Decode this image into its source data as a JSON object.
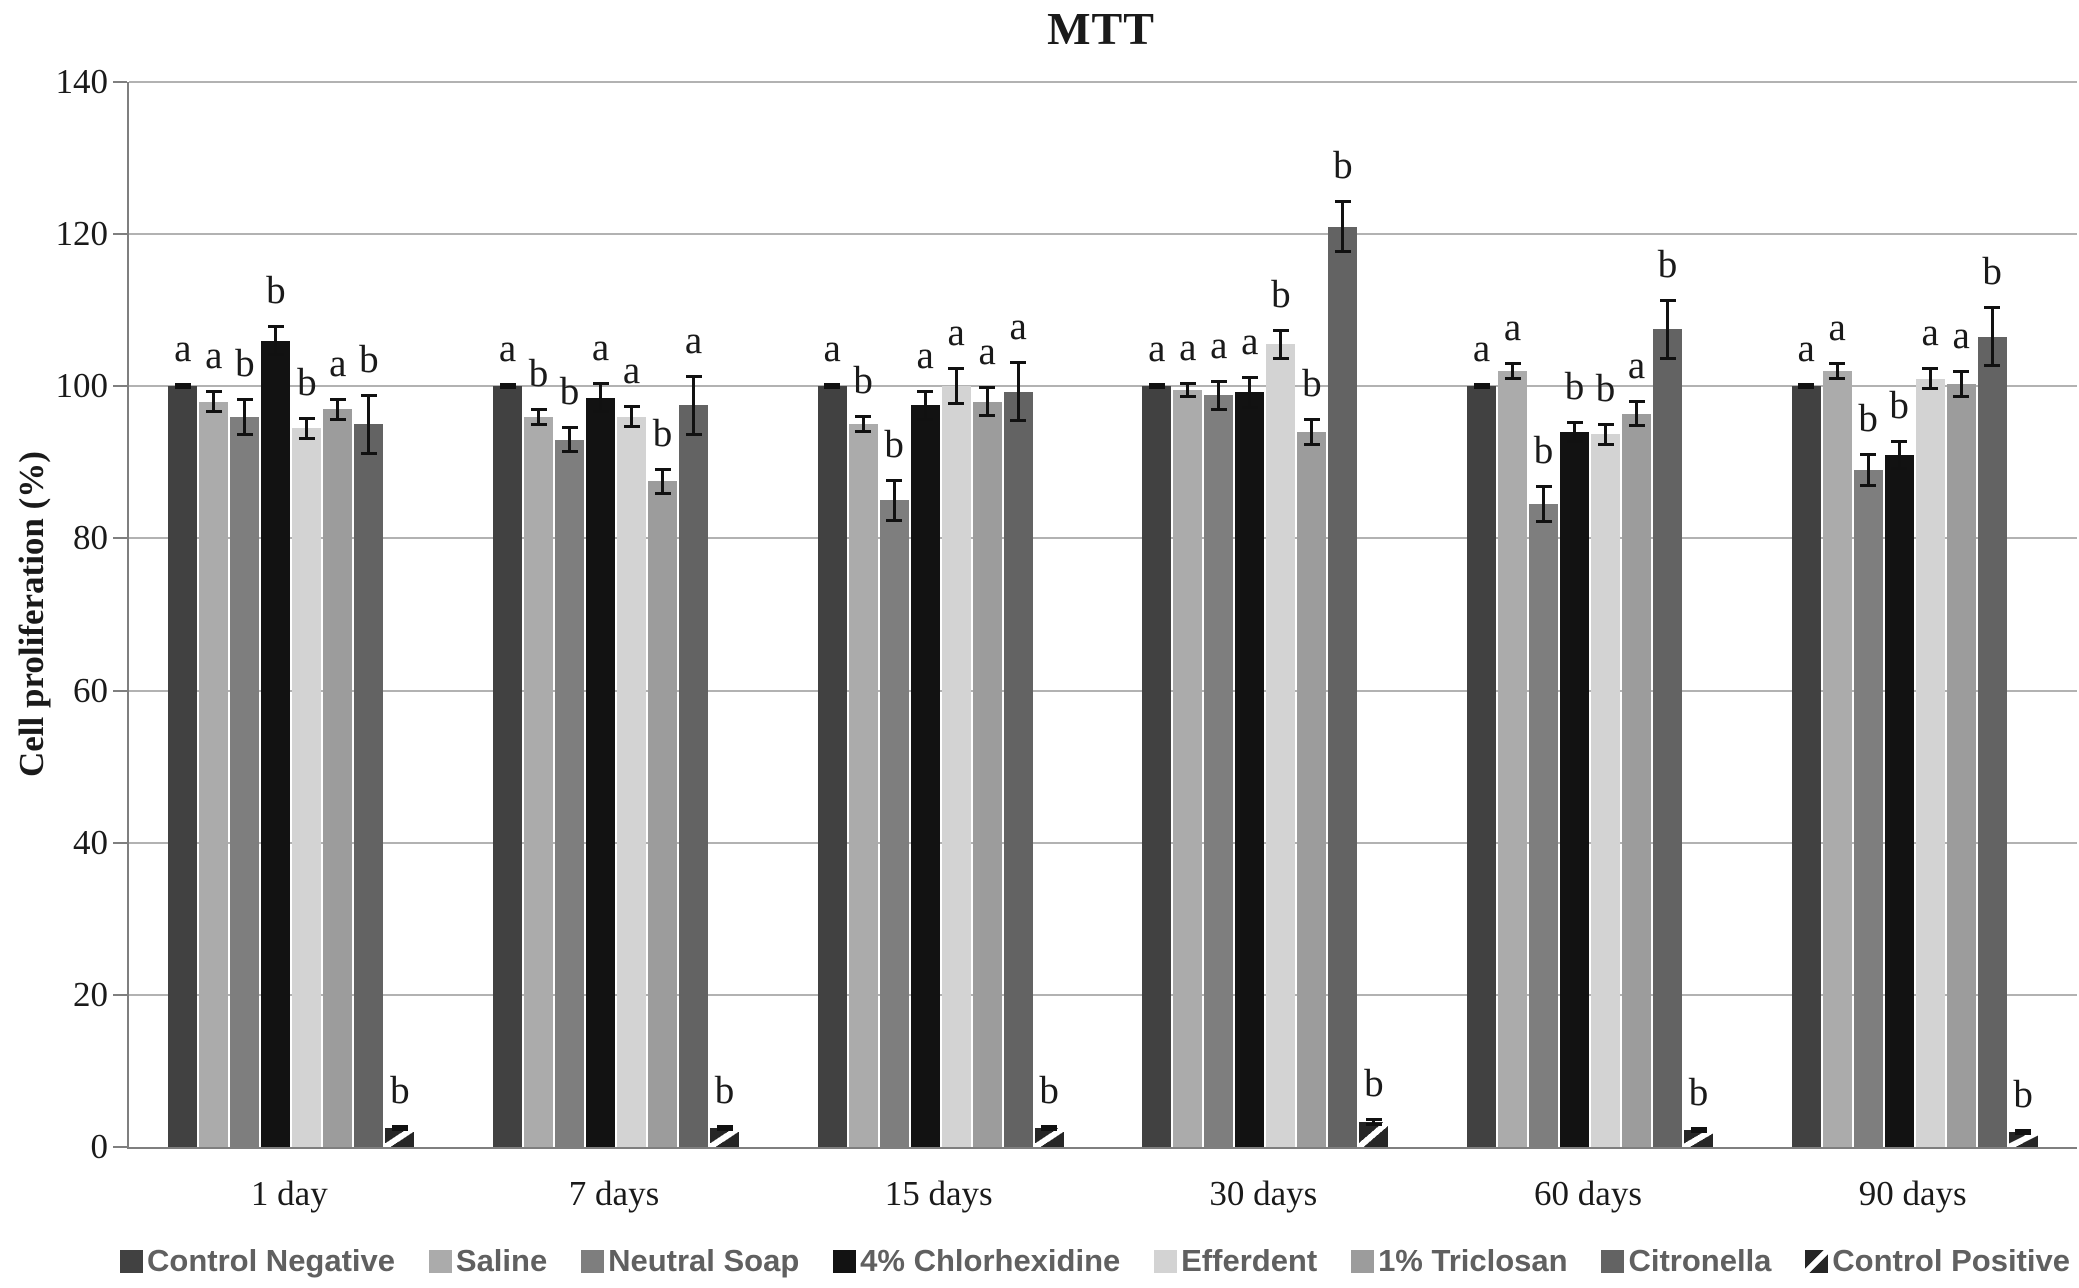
{
  "chart_data": {
    "type": "bar",
    "title": "MTT",
    "ylabel": "Cell proliferation (%)",
    "ylim": [
      0,
      140
    ],
    "ytick_step": 20,
    "yticks": [
      0,
      20,
      40,
      60,
      80,
      100,
      120,
      140
    ],
    "grid": "horizontal",
    "legend_position": "bottom",
    "categories": [
      "1 day",
      "7 days",
      "15 days",
      "30 days",
      "60 days",
      "90 days"
    ],
    "series": [
      {
        "name": "Control Negative",
        "color": "#414141",
        "hatch": false,
        "values": [
          100,
          100,
          100,
          100,
          100,
          100
        ],
        "errors": [
          0.4,
          0.4,
          0.4,
          0.4,
          0.4,
          0.4
        ],
        "letters": [
          "a",
          "a",
          "a",
          "a",
          "a",
          "a"
        ]
      },
      {
        "name": "Saline",
        "color": "#ababab",
        "hatch": false,
        "values": [
          98,
          96,
          95,
          99.5,
          102,
          102
        ],
        "errors": [
          1.5,
          1.2,
          1.2,
          1.0,
          1.2,
          1.2
        ],
        "letters": [
          "a",
          "b",
          "b",
          "a",
          "a",
          "a"
        ]
      },
      {
        "name": "Neutral Soap",
        "color": "#7e7e7e",
        "hatch": false,
        "values": [
          96,
          93,
          85,
          98.8,
          84.5,
          89
        ],
        "errors": [
          2.5,
          1.8,
          2.8,
          2.0,
          2.5,
          2.2
        ],
        "letters": [
          "b",
          "b",
          "b",
          "a",
          "b",
          "b"
        ]
      },
      {
        "name": "4% Chlorhexidine",
        "color": "#121212",
        "hatch": false,
        "values": [
          106,
          98.5,
          97.5,
          99.2,
          94,
          91
        ],
        "errors": [
          2.0,
          2.0,
          2.0,
          2.2,
          1.5,
          2.0
        ],
        "letters": [
          "b",
          "a",
          "a",
          "a",
          "b",
          "b"
        ]
      },
      {
        "name": "Efferdent",
        "color": "#d3d3d3",
        "hatch": false,
        "values": [
          94.5,
          96,
          100,
          105.5,
          93.7,
          101
        ],
        "errors": [
          1.5,
          1.5,
          2.5,
          2.0,
          1.5,
          1.5
        ],
        "letters": [
          "b",
          "a",
          "a",
          "b",
          "b",
          "a"
        ]
      },
      {
        "name": "1% Triclosan",
        "color": "#9c9c9c",
        "hatch": false,
        "values": [
          97,
          87.5,
          98,
          94,
          96.4,
          100.3
        ],
        "errors": [
          1.5,
          1.8,
          2.0,
          1.8,
          1.8,
          1.8
        ],
        "letters": [
          "a",
          "b",
          "a",
          "b",
          "a",
          "a"
        ]
      },
      {
        "name": "Citronella",
        "color": "#636363",
        "hatch": false,
        "values": [
          95,
          97.5,
          99.3,
          121,
          107.5,
          106.5
        ],
        "errors": [
          4.0,
          4.0,
          4.0,
          3.5,
          4.0,
          4.0
        ],
        "letters": [
          "b",
          "a",
          "a",
          "b",
          "b",
          "b"
        ]
      },
      {
        "name": "Control Positive",
        "color": "#262626",
        "hatch": true,
        "values": [
          2.5,
          2.5,
          2.5,
          3.3,
          2.2,
          2.0
        ],
        "errors": [
          0.4,
          0.4,
          0.4,
          0.5,
          0.4,
          0.4
        ],
        "letters": [
          "b",
          "b",
          "b",
          "b",
          "b",
          "b"
        ]
      }
    ]
  }
}
